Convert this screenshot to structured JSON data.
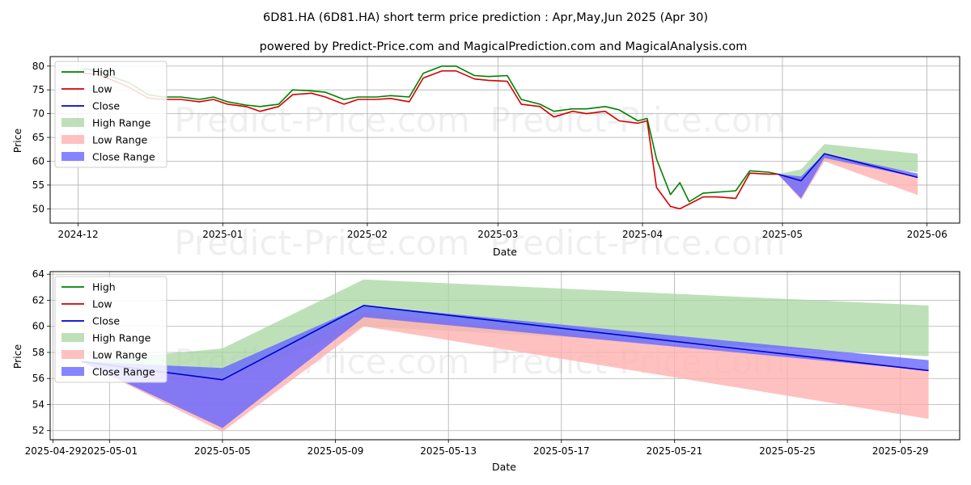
{
  "title": "6D81.HA (6D81.HA) short term price prediction : Apr,May,Jun 2025 (Apr 30)",
  "subtitle": "powered by Predict-Price.com and MagicalPrediction.com and MagicalAnalysis.com",
  "watermark": "Predict-Price.com",
  "colors": {
    "high": "#008000",
    "low": "#d40000",
    "close": "#0000d0",
    "high_range": "#a8d5a2",
    "low_range": "#ffb0b0",
    "close_range": "#6666ff"
  },
  "chart_data": [
    {
      "type": "line",
      "name": "overview",
      "xlabel": "Date",
      "ylabel": "Price",
      "ylim": [
        47,
        82
      ],
      "xlim": [
        "2024-11-25",
        "2025-06-08"
      ],
      "grid": true,
      "legend": "top-left",
      "legend_entries": [
        "High",
        "Low",
        "Close",
        "High Range",
        "Low Range",
        "Close Range"
      ],
      "x_ticks": [
        {
          "date": "2024-12-01",
          "label": "2024-12"
        },
        {
          "date": "2025-01-01",
          "label": "2025-01"
        },
        {
          "date": "2025-02-01",
          "label": "2025-02"
        },
        {
          "date": "2025-03-01",
          "label": "2025-03"
        },
        {
          "date": "2025-04-01",
          "label": "2025-04"
        },
        {
          "date": "2025-05-01",
          "label": "2025-05"
        },
        {
          "date": "2025-06-01",
          "label": "2025-06"
        }
      ],
      "y_ticks": [
        50,
        55,
        60,
        65,
        70,
        75,
        80
      ],
      "history": {
        "dates": [
          "2024-12-02",
          "2024-12-05",
          "2024-12-09",
          "2024-12-12",
          "2024-12-16",
          "2024-12-19",
          "2024-12-23",
          "2024-12-27",
          "2024-12-30",
          "2025-01-02",
          "2025-01-06",
          "2025-01-09",
          "2025-01-13",
          "2025-01-16",
          "2025-01-20",
          "2025-01-23",
          "2025-01-27",
          "2025-01-30",
          "2025-02-03",
          "2025-02-06",
          "2025-02-10",
          "2025-02-13",
          "2025-02-17",
          "2025-02-20",
          "2025-02-24",
          "2025-02-27",
          "2025-03-03",
          "2025-03-06",
          "2025-03-10",
          "2025-03-13",
          "2025-03-17",
          "2025-03-20",
          "2025-03-24",
          "2025-03-27",
          "2025-03-31",
          "2025-04-02",
          "2025-04-04",
          "2025-04-07",
          "2025-04-09",
          "2025-04-11",
          "2025-04-14",
          "2025-04-17",
          "2025-04-21",
          "2025-04-24",
          "2025-04-28",
          "2025-04-30"
        ],
        "high": [
          79.5,
          79.0,
          77.5,
          76.5,
          74.0,
          73.5,
          73.5,
          73.0,
          73.5,
          72.5,
          71.8,
          71.5,
          72.0,
          75.0,
          74.8,
          74.5,
          73.0,
          73.5,
          73.5,
          73.8,
          73.5,
          78.5,
          80.0,
          80.0,
          78.0,
          77.8,
          78.0,
          73.0,
          72.0,
          70.5,
          71.0,
          71.0,
          71.5,
          70.8,
          68.5,
          69.0,
          60.5,
          53.0,
          55.5,
          51.5,
          53.3,
          53.5,
          53.8,
          58.0,
          57.7,
          57.3
        ],
        "low": [
          78.5,
          78.3,
          76.8,
          75.5,
          73.3,
          73.0,
          73.0,
          72.5,
          73.0,
          72.0,
          71.5,
          70.5,
          71.5,
          74.0,
          74.3,
          73.5,
          72.0,
          73.0,
          73.0,
          73.2,
          72.5,
          77.5,
          79.0,
          79.0,
          77.3,
          77.0,
          76.8,
          72.0,
          71.5,
          69.3,
          70.5,
          70.0,
          70.5,
          68.5,
          68.0,
          68.5,
          54.5,
          50.5,
          50.0,
          51.0,
          52.5,
          52.5,
          52.2,
          57.5,
          57.3,
          57.3
        ],
        "close": [
          null,
          null,
          null,
          null,
          null,
          null,
          null,
          null,
          null,
          null,
          null,
          null,
          null,
          null,
          null,
          null,
          null,
          null,
          null,
          null,
          null,
          null,
          null,
          null,
          null,
          null,
          null,
          null,
          null,
          null,
          null,
          null,
          null,
          null,
          null,
          null,
          null,
          null,
          null,
          null,
          null,
          null,
          null,
          null,
          null,
          57.3
        ]
      },
      "forecast": {
        "dates": [
          "2025-04-30",
          "2025-05-05",
          "2025-05-10",
          "2025-05-30"
        ],
        "close": [
          57.3,
          55.9,
          61.6,
          56.6
        ],
        "close_range": {
          "low": [
            57.3,
            52.2,
            60.7,
            56.6
          ],
          "high": [
            57.3,
            56.8,
            61.6,
            57.4
          ]
        },
        "high_range": {
          "low": [
            57.3,
            55.9,
            60.0,
            57.7
          ],
          "high": [
            57.3,
            58.3,
            63.6,
            61.6
          ]
        },
        "low_range": {
          "low": [
            57.3,
            51.9,
            60.0,
            52.9
          ],
          "high": [
            57.3,
            55.9,
            61.1,
            56.6
          ]
        }
      }
    },
    {
      "type": "line",
      "name": "zoom",
      "xlabel": "Date",
      "ylabel": "Price",
      "ylim": [
        51.3,
        64.2
      ],
      "xlim": [
        "2025-04-28.9",
        "2025-05-31.1"
      ],
      "grid": true,
      "legend": "top-left",
      "legend_entries": [
        "High",
        "Low",
        "Close",
        "High Range",
        "Low Range",
        "Close Range"
      ],
      "x_ticks": [
        {
          "date": "2025-04-29",
          "label": "2025-04-29"
        },
        {
          "date": "2025-05-01",
          "label": "2025-05-01"
        },
        {
          "date": "2025-05-05",
          "label": "2025-05-05"
        },
        {
          "date": "2025-05-09",
          "label": "2025-05-09"
        },
        {
          "date": "2025-05-13",
          "label": "2025-05-13"
        },
        {
          "date": "2025-05-17",
          "label": "2025-05-17"
        },
        {
          "date": "2025-05-21",
          "label": "2025-05-21"
        },
        {
          "date": "2025-05-25",
          "label": "2025-05-25"
        },
        {
          "date": "2025-05-29",
          "label": "2025-05-29"
        }
      ],
      "y_ticks": [
        52,
        54,
        56,
        58,
        60,
        62,
        64
      ]
    }
  ]
}
